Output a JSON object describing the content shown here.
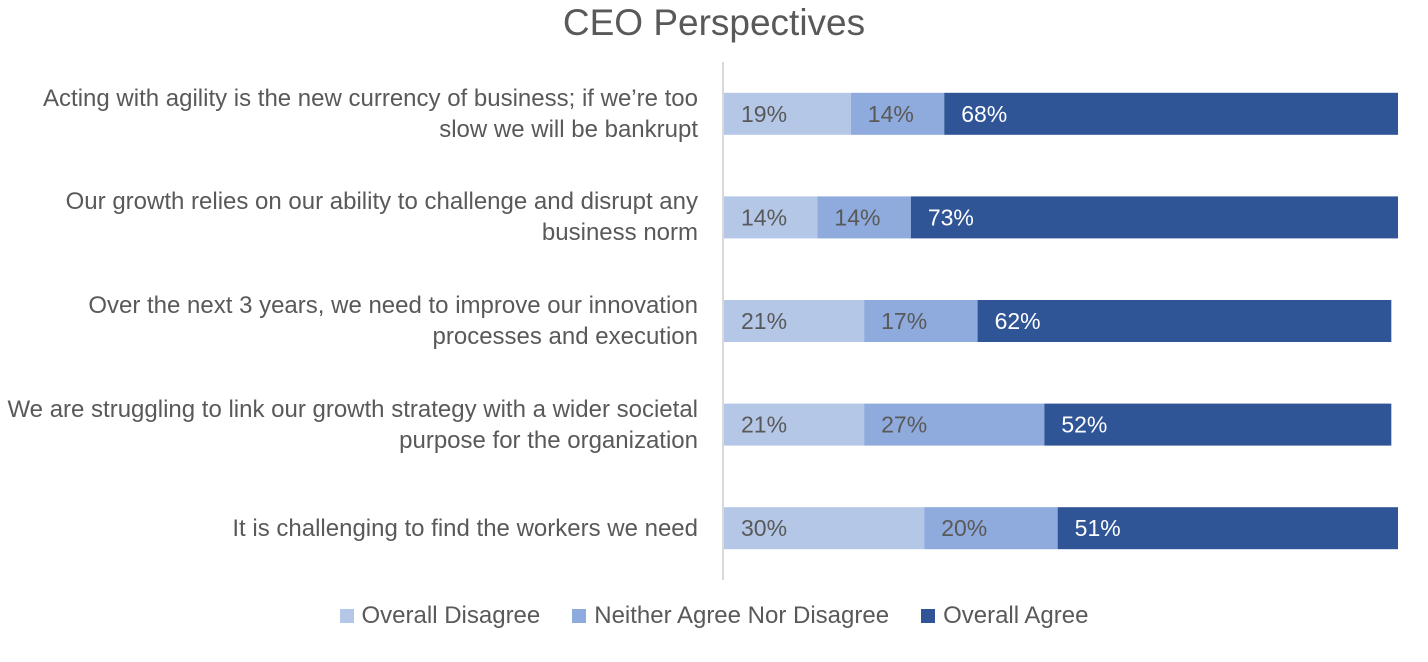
{
  "chart_data": {
    "type": "bar",
    "orientation": "horizontal",
    "stacked": true,
    "title": "CEO Perspectives",
    "xlabel": "",
    "ylabel": "",
    "xlim": [
      0,
      100
    ],
    "grid": false,
    "legend_position": "bottom",
    "categories": [
      "Acting with agility is the new currency of business; if we’re too slow we will be bankrupt",
      "Our growth relies on our ability to challenge and disrupt any business norm",
      "Over the next 3 years, we need to improve our innovation processes and execution",
      "We are struggling to link our growth strategy with a wider societal purpose for the organization",
      "It is challenging to find the workers we need"
    ],
    "series": [
      {
        "name": "Overall Disagree",
        "color": "#b4c7e7",
        "values": [
          19,
          14,
          21,
          21,
          30
        ],
        "labels": [
          "19%",
          "14%",
          "21%",
          "21%",
          "30%"
        ],
        "label_color": "#595959"
      },
      {
        "name": "Neither Agree Nor Disagree",
        "color": "#8faadc",
        "values": [
          14,
          14,
          17,
          27,
          20
        ],
        "labels": [
          "14%",
          "14%",
          "17%",
          "27%",
          "20%"
        ],
        "label_color": "#595959"
      },
      {
        "name": "Overall Agree",
        "color": "#2f5597",
        "values": [
          68,
          73,
          62,
          52,
          51
        ],
        "labels": [
          "68%",
          "73%",
          "62%",
          "52%",
          "51%"
        ],
        "label_color": "#ffffff"
      }
    ]
  }
}
